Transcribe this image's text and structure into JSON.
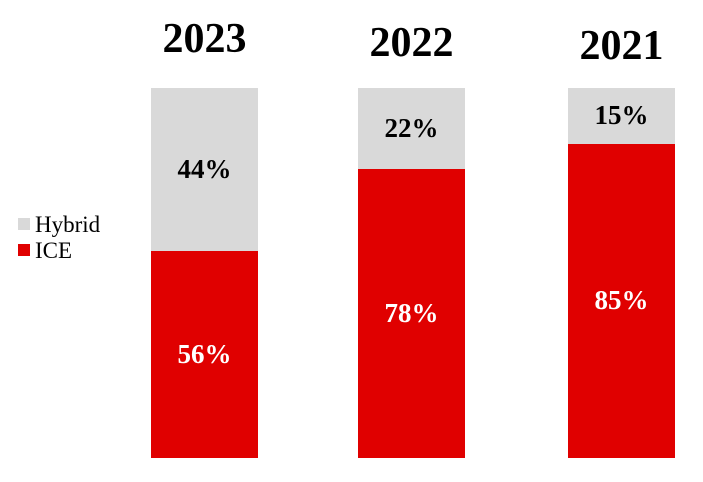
{
  "chart_data": {
    "type": "bar",
    "stacked": true,
    "orientation": "vertical",
    "title": "",
    "xlabel": "",
    "ylabel": "",
    "ylim": [
      0,
      100
    ],
    "unit": "%",
    "grid": false,
    "axes_visible": false,
    "legend_position": "middle-left",
    "categories": [
      "2023",
      "2022",
      "2021"
    ],
    "series": [
      {
        "name": "Hybrid",
        "color": "#d9d9d9",
        "text_color": "#000000",
        "values": [
          44,
          22,
          15
        ],
        "labels": [
          "44%",
          "22%",
          "15%"
        ]
      },
      {
        "name": "ICE",
        "color": "#e00000",
        "text_color": "#ffffff",
        "values": [
          56,
          78,
          85
        ],
        "labels": [
          "56%",
          "78%",
          "85%"
        ]
      }
    ],
    "colors": {
      "background": "#ffffff",
      "hybrid": "#d9d9d9",
      "ice": "#e00000",
      "title_text": "#000000"
    }
  }
}
